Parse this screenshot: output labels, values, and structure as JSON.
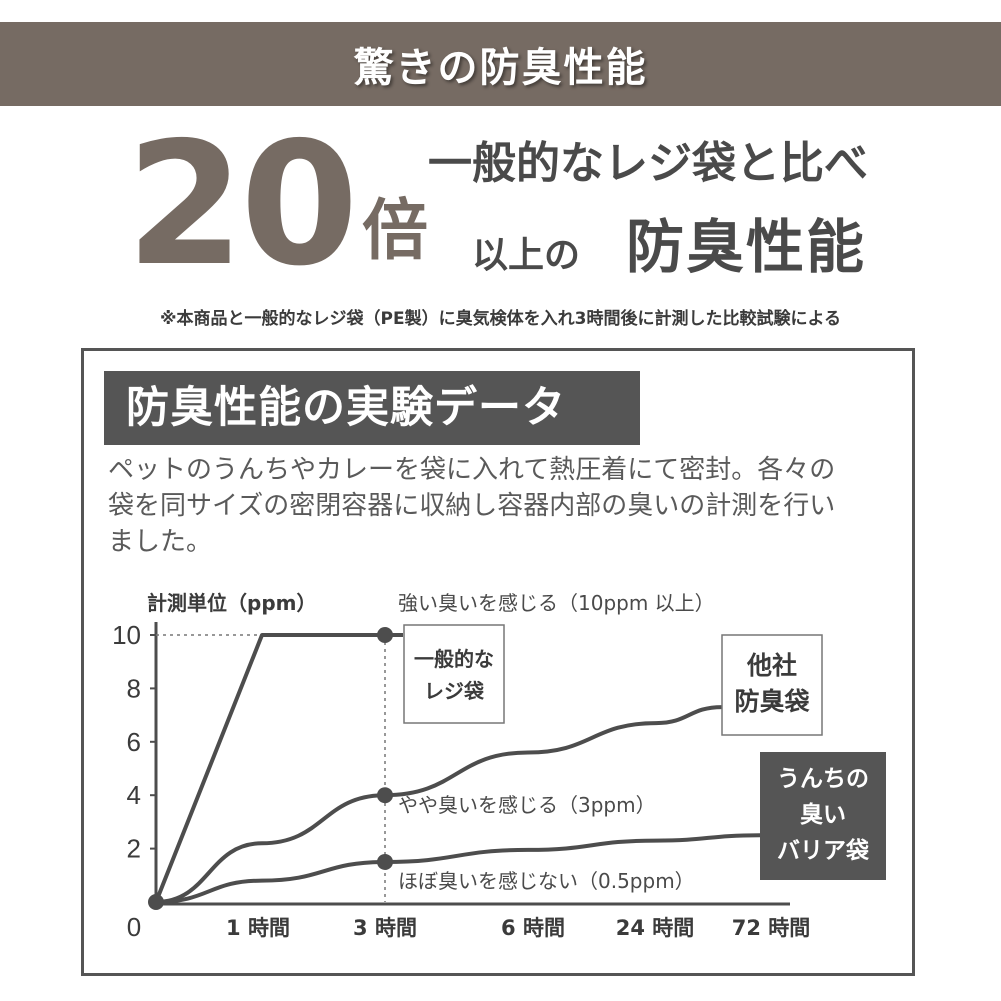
{
  "banner": {
    "title": "驚きの防臭性能"
  },
  "headline": {
    "number": "20",
    "unit": "倍",
    "line1": "一般的なレジ袋と比べ",
    "line2_small": "以上の",
    "line2_large": "防臭性能"
  },
  "footnote": "※本商品と一般的なレジ袋（PE製）に臭気検体を入れ3時間後に計測した比較試験による",
  "panel": {
    "title": "防臭性能の実験データ",
    "description_lines": [
      "ペットのうんちやカレーを袋に入れて熱圧着にて密封。各々の",
      "袋を同サイズの密閉容器に収納し容器内部の臭いの計測を行い",
      "ました。"
    ]
  },
  "colors": {
    "brand_brown": "#766b63",
    "dark_gray": "#555555",
    "line": "#4d4d4d"
  },
  "chart_data": {
    "type": "line",
    "ylabel": "計測単位（ppm）",
    "ylim": [
      0,
      10
    ],
    "yticks": [
      "0",
      "2",
      "4",
      "6",
      "8",
      "10"
    ],
    "categories": [
      "0",
      "1 時間",
      "3 時間",
      "6 時間",
      "24 時間",
      "72 時間"
    ],
    "series": [
      {
        "name": "一般的なレジ袋",
        "name_lines": [
          "一般的な",
          "レジ袋"
        ],
        "style": "outline-box",
        "x": [
          0,
          1,
          3
        ],
        "values": [
          0,
          10,
          10
        ]
      },
      {
        "name": "他社防臭袋",
        "name_lines": [
          "他社",
          "防臭袋"
        ],
        "style": "outline-box-large",
        "x": [
          0,
          1,
          3,
          6,
          24,
          72
        ],
        "values": [
          0,
          2.2,
          4,
          5.6,
          6.7,
          7.3
        ]
      },
      {
        "name": "うんちの臭いバリア袋",
        "name_lines": [
          "うんちの",
          "臭い",
          "バリア袋"
        ],
        "style": "filled-box",
        "x": [
          0,
          1,
          3,
          6,
          24,
          72
        ],
        "values": [
          0,
          0.8,
          1.5,
          1.95,
          2.3,
          2.5
        ]
      }
    ],
    "highlight_x": 3,
    "markers": [
      {
        "series": 0,
        "x": 3,
        "value": 10
      },
      {
        "series": 1,
        "x": 3,
        "value": 4
      },
      {
        "series": 2,
        "x": 3,
        "value": 1.5
      },
      {
        "series": 0,
        "x": 0,
        "value": 0
      }
    ],
    "annotations": [
      {
        "text": "強い臭いを感じる（10ppm 以上）",
        "value": 10
      },
      {
        "text": "やや臭いを感じる（3ppm）",
        "value": 4
      },
      {
        "text": "ほぼ臭いを感じない（0.5ppm）",
        "value": 1.5
      }
    ],
    "grid": false
  }
}
